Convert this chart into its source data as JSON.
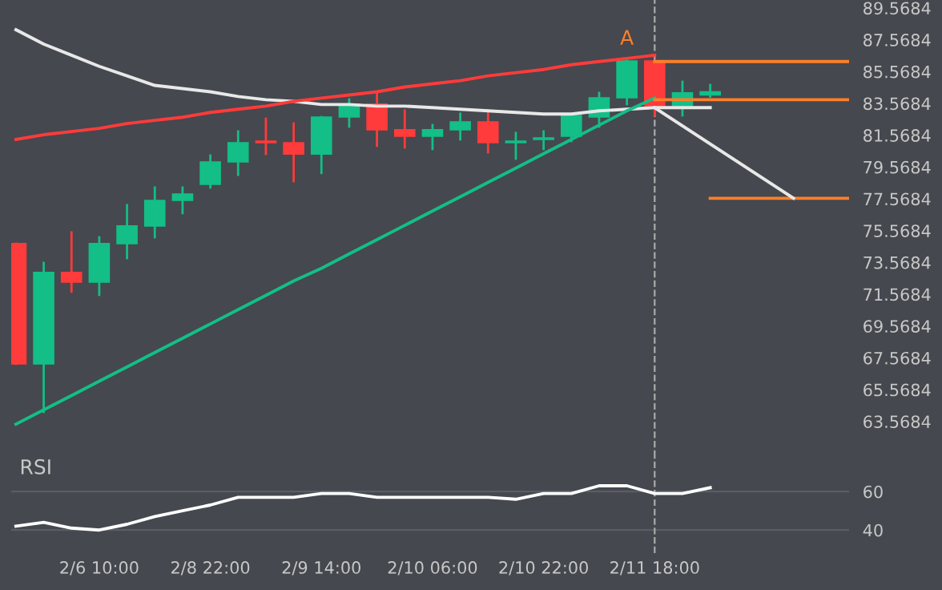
{
  "chart_data": [
    {
      "type": "candlestick",
      "tick_labels": "y",
      "grid": false,
      "categories": [
        null,
        null,
        null,
        "2/6 10:00",
        null,
        null,
        null,
        "2/8 22:00",
        null,
        null,
        null,
        "2/9 14:00",
        null,
        null,
        null,
        "2/10 06:00",
        null,
        null,
        null,
        "2/10 22:00",
        null,
        null,
        null,
        "2/11 18:00",
        null,
        null,
        null,
        null,
        null,
        null,
        null
      ],
      "ohlc": [
        [
          74.75,
          74.75,
          67.19,
          67.19
        ],
        [
          67.19,
          73.54,
          64.17,
          72.94
        ],
        [
          72.94,
          75.46,
          71.73,
          72.33
        ],
        [
          72.33,
          75.15,
          71.53,
          74.75
        ],
        [
          74.75,
          77.17,
          73.84,
          75.86
        ],
        [
          75.86,
          78.28,
          75.15,
          77.47
        ],
        [
          77.47,
          78.28,
          76.67,
          77.87
        ],
        [
          78.48,
          80.29,
          78.28,
          79.89
        ],
        [
          79.89,
          81.81,
          79.08,
          81.1
        ],
        [
          81.2,
          82.61,
          80.39,
          81.1
        ],
        [
          81.1,
          82.31,
          78.68,
          80.39
        ],
        [
          80.39,
          82.71,
          79.19,
          82.71
        ],
        [
          82.71,
          83.82,
          82.11,
          83.52
        ],
        [
          83.52,
          84.23,
          80.9,
          81.91
        ],
        [
          81.91,
          83.12,
          80.8,
          81.5
        ],
        [
          81.5,
          82.21,
          80.7,
          81.91
        ],
        [
          81.91,
          82.92,
          81.3,
          82.41
        ],
        [
          82.41,
          83.12,
          80.49,
          81.1
        ],
        [
          81.1,
          81.71,
          80.09,
          81.2
        ],
        [
          81.3,
          81.81,
          80.7,
          81.4
        ],
        [
          81.5,
          82.81,
          81.2,
          82.81
        ],
        [
          82.71,
          84.23,
          82.11,
          83.92
        ],
        [
          83.92,
          86.24,
          83.52,
          86.24
        ],
        [
          86.24,
          86.24,
          82.81,
          83.42
        ],
        [
          83.42,
          84.93,
          82.81,
          84.23
        ],
        [
          84.1,
          84.73,
          84.0,
          84.3
        ],
        null,
        null,
        null,
        null,
        null
      ],
      "colors": [
        "#ff3b3b",
        "#13bf87",
        "#ff3b3b",
        "#13bf87",
        "#13bf87",
        "#13bf87",
        "#13bf87",
        "#13bf87",
        "#13bf87",
        "#ff3b3b",
        "#ff3b3b",
        "#13bf87",
        "#13bf87",
        "#ff3b3b",
        "#ff3b3b",
        "#13bf87",
        "#13bf87",
        "#ff3b3b",
        "#13bf87",
        "#13bf87",
        "#13bf87",
        "#13bf87",
        "#13bf87",
        "#ff3b3b",
        "#13bf87",
        "#13bf87",
        null,
        null,
        null,
        null,
        null
      ],
      "series": [
        {
          "type": "line",
          "color": "#e8e8e8",
          "values": [
            88.2,
            87.3,
            86.6,
            85.9,
            85.3,
            84.7,
            84.5,
            84.3,
            84.0,
            83.8,
            83.7,
            83.5,
            83.5,
            83.4,
            83.4,
            83.3,
            83.2,
            83.1,
            83.0,
            82.9,
            82.9,
            83.1,
            83.2,
            83.3,
            83.3,
            83.3,
            null,
            null,
            null,
            null,
            null
          ]
        },
        {
          "type": "line",
          "color": "#ff3b3b",
          "values": [
            81.3,
            81.6,
            81.8,
            82.0,
            82.3,
            82.5,
            82.7,
            83.0,
            83.2,
            83.4,
            83.7,
            83.9,
            84.1,
            84.3,
            84.6,
            84.8,
            85.0,
            85.3,
            85.5,
            85.7,
            86.0,
            86.2,
            86.4,
            86.6,
            null,
            null,
            null,
            null,
            null,
            null,
            null
          ]
        },
        {
          "type": "line",
          "color": "#13bf87",
          "values": [
            63.4,
            64.3,
            65.2,
            66.1,
            67.0,
            67.9,
            68.8,
            69.7,
            70.6,
            71.5,
            72.4,
            73.2,
            74.1,
            75.0,
            75.9,
            76.8,
            77.7,
            78.6,
            79.5,
            80.4,
            81.3,
            82.2,
            83.1,
            83.9,
            null,
            null,
            null,
            null,
            null,
            null,
            null
          ]
        },
        {
          "type": "line",
          "color": "#ff7f2a",
          "values": [
            null,
            null,
            null,
            null,
            null,
            null,
            null,
            null,
            null,
            null,
            null,
            null,
            null,
            null,
            null,
            null,
            null,
            null,
            null,
            null,
            null,
            null,
            null,
            86.2,
            86.2,
            86.2,
            86.2,
            86.2,
            86.2,
            86.2,
            86.2
          ]
        },
        {
          "type": "line",
          "color": "#ff7f2a",
          "values": [
            null,
            null,
            null,
            null,
            null,
            null,
            null,
            null,
            null,
            null,
            null,
            null,
            null,
            null,
            null,
            null,
            null,
            null,
            null,
            null,
            null,
            null,
            null,
            83.8,
            83.8,
            83.8,
            83.8,
            83.8,
            83.8,
            83.8,
            83.8
          ]
        },
        {
          "type": "line",
          "color": "#ff7f2a",
          "values": [
            null,
            null,
            null,
            null,
            null,
            null,
            null,
            null,
            null,
            null,
            null,
            null,
            null,
            null,
            null,
            null,
            null,
            null,
            null,
            null,
            null,
            null,
            null,
            null,
            null,
            77.6,
            77.6,
            77.6,
            77.6,
            77.6,
            77.6
          ]
        },
        {
          "type": "line",
          "color": "#e8e8e8",
          "values": [
            null,
            null,
            null,
            null,
            null,
            null,
            null,
            null,
            null,
            null,
            null,
            null,
            null,
            null,
            null,
            null,
            null,
            null,
            null,
            null,
            null,
            null,
            null,
            83.3,
            null,
            null,
            null,
            null,
            77.6,
            null,
            null
          ]
        }
      ],
      "annotations": [
        {
          "text": "A",
          "y": 87.0
        }
      ],
      "ref_lines": [
        {
          "axis": "x",
          "value": "2/11 18:00",
          "color": "#aaaaaa",
          "line_style": "dashed"
        }
      ],
      "ylim": [
        61.34,
        90.07
      ],
      "yticks": [
        63.5684,
        65.5684,
        67.5684,
        69.5684,
        71.5684,
        73.5684,
        75.5684,
        77.5684,
        79.5684,
        81.5684,
        83.5684,
        85.5684,
        87.5684,
        89.5684
      ]
    },
    {
      "type": "line",
      "title": "RSI",
      "grid": "y",
      "categories": [
        null,
        null,
        null,
        "2/6 10:00",
        null,
        null,
        null,
        "2/8 22:00",
        null,
        null,
        null,
        "2/9 14:00",
        null,
        null,
        null,
        "2/10 06:00",
        null,
        null,
        null,
        "2/10 22:00",
        null,
        null,
        null,
        "2/11 18:00",
        null,
        null,
        null,
        null,
        null,
        null,
        null
      ],
      "series": [
        {
          "color": "#ffffff",
          "values": [
            42,
            44,
            41,
            40,
            43,
            47,
            50,
            53,
            57,
            57,
            57,
            59,
            59,
            57,
            57,
            57,
            57,
            57,
            56,
            59,
            59,
            63,
            63,
            59,
            59,
            62,
            null,
            null,
            null,
            null,
            null
          ]
        }
      ],
      "ref_lines": [
        {
          "axis": "x",
          "value": "2/11 18:00",
          "color": "#aaaaaa",
          "line_style": "dashed"
        }
      ],
      "ylim": [
        28,
        78
      ],
      "yticks": [
        40,
        60
      ]
    }
  ]
}
